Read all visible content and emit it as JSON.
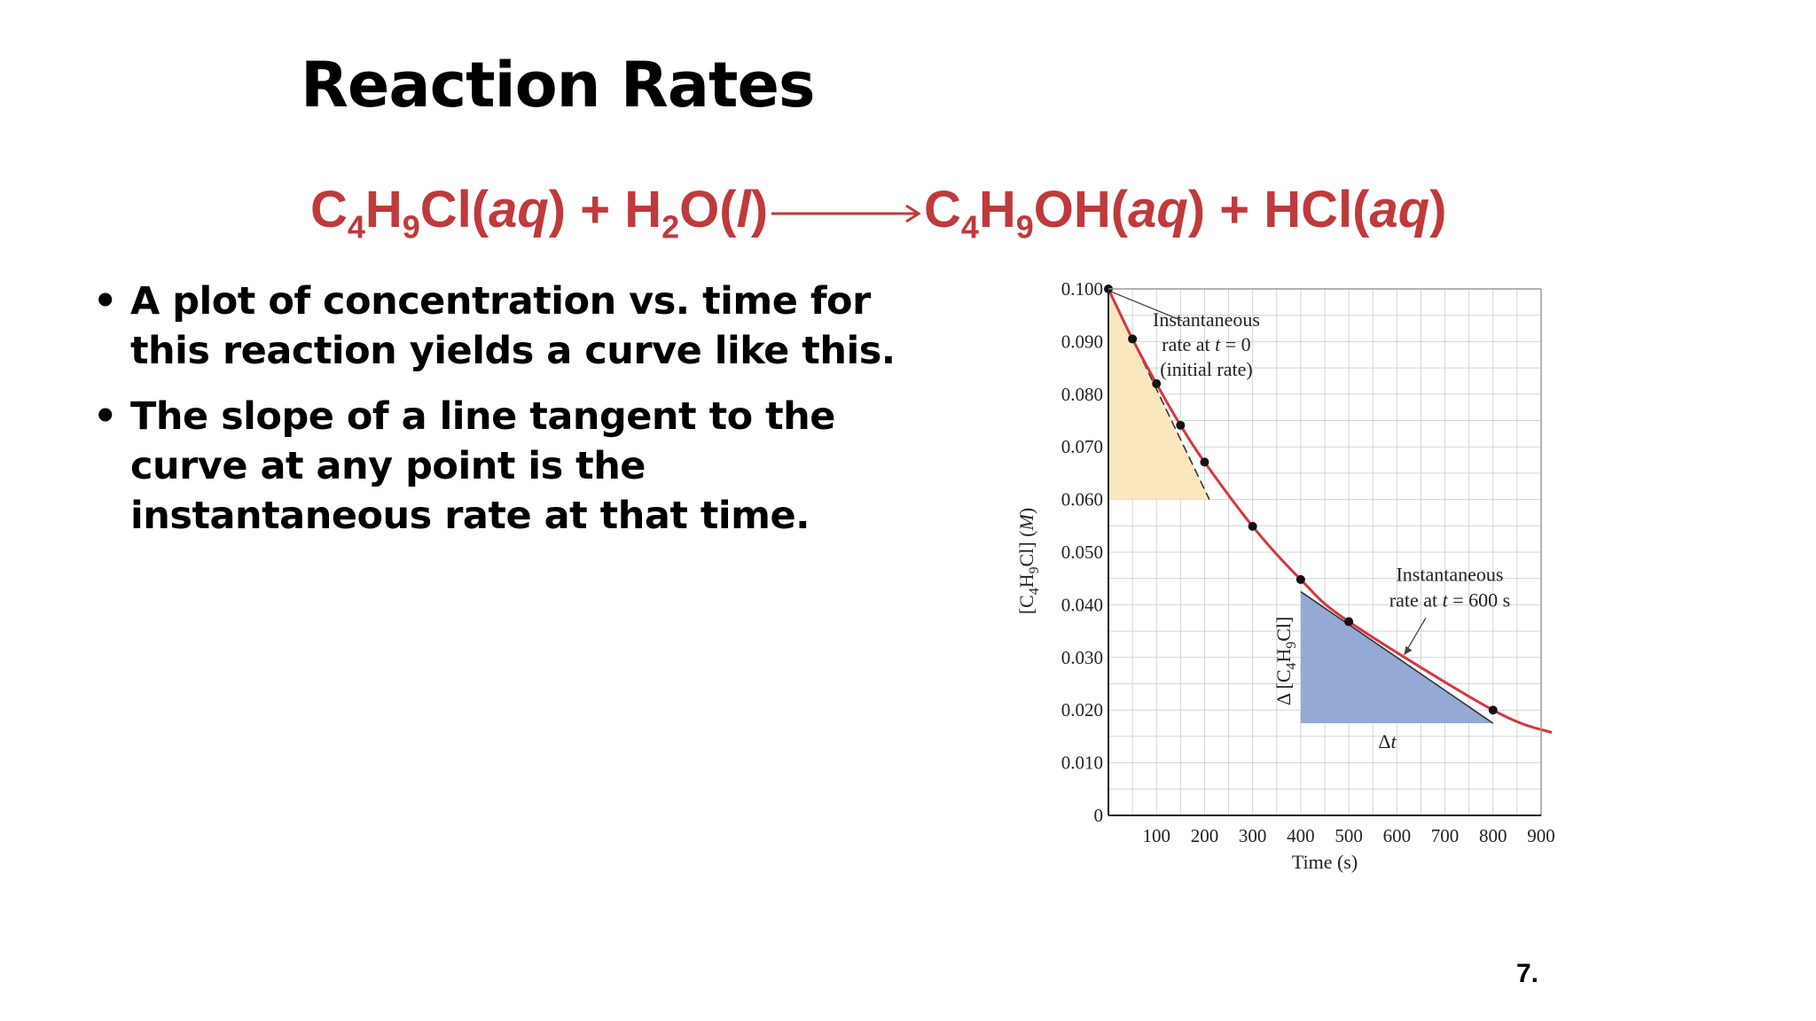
{
  "slide": {
    "title": "Reaction Rates",
    "equation": {
      "r1_a": "C",
      "r1_s1": "4",
      "r1_b": "H",
      "r1_s2": "9",
      "r1_c": "Cl(",
      "r1_phase": "aq",
      "r1_close": ")",
      "plus1": " + ",
      "r2_a": "H",
      "r2_s1": "2",
      "r2_b": "O(",
      "r2_phase": "l",
      "r2_close": ")",
      "p1_a": "C",
      "p1_s1": "4",
      "p1_b": "H",
      "p1_s2": "9",
      "p1_c": "OH(",
      "p1_phase": "aq",
      "p1_close": ")",
      "plus2": " + ",
      "p2_a": "HCl(",
      "p2_phase": "aq",
      "p2_close": ")"
    },
    "bullets": [
      "A plot of concentration vs. time for this reaction yields a curve like this.",
      "The slope of a line tangent to the curve at any point is the instantaneous rate at that time."
    ],
    "page_number": "7."
  },
  "chart_data": {
    "type": "line",
    "title": "",
    "xlabel": "Time (s)",
    "ylabel_parts": [
      "[C",
      "4",
      "H",
      "9",
      "Cl] (",
      "M",
      ")"
    ],
    "xlim": [
      0,
      900
    ],
    "ylim": [
      0,
      0.1
    ],
    "x_tick_values": [
      100,
      200,
      300,
      400,
      500,
      600,
      700,
      800,
      900
    ],
    "x_tick_labels": [
      "100",
      "200",
      "300",
      "400",
      "500",
      "600",
      "700",
      "800",
      "900"
    ],
    "y_tick_values": [
      0,
      0.01,
      0.02,
      0.03,
      0.04,
      0.05,
      0.06,
      0.07,
      0.08,
      0.09,
      0.1
    ],
    "y_tick_labels": [
      "0",
      "0.010",
      "0.020",
      "0.030",
      "0.040",
      "0.050",
      "0.060",
      "0.070",
      "0.080",
      "0.090",
      "0.100"
    ],
    "grid": true,
    "series": [
      {
        "name": "[C4H9Cl]",
        "color": "#d9343f",
        "x": [
          0,
          50,
          100,
          150,
          200,
          300,
          400,
          500,
          800
        ],
        "values": [
          0.1,
          0.0905,
          0.082,
          0.0741,
          0.0671,
          0.0549,
          0.0448,
          0.0368,
          0.02
        ]
      }
    ],
    "curve_extension": {
      "x": 900,
      "value": 0.0164
    },
    "initial_tangent": {
      "x": [
        0,
        210
      ],
      "values": [
        0.1,
        0.06
      ],
      "triangle": {
        "x": [
          0,
          210
        ],
        "values": [
          0.1,
          0.06
        ],
        "fill": "#fbe7bd"
      }
    },
    "tangent_600": {
      "x": [
        400,
        800
      ],
      "values": [
        0.0425,
        0.0175
      ],
      "triangle": {
        "x": [
          400,
          800
        ],
        "values": [
          0.0425,
          0.0175
        ],
        "fill": "#94aad4"
      }
    },
    "annotations": {
      "initial": {
        "lines": [
          "Instantaneous",
          "rate at t = 0",
          "(initial rate)"
        ],
        "line2_parts": [
          "rate at ",
          "t",
          " = 0"
        ]
      },
      "t600": {
        "lines": [
          "Instantaneous",
          "rate at t = 600 s"
        ],
        "line2_parts": [
          "rate at ",
          "t",
          " = 600 s"
        ]
      },
      "delta_conc_parts": [
        "Δ [C",
        "4",
        "H",
        "9",
        "Cl]"
      ],
      "delta_t_parts": [
        "Δ",
        "t"
      ]
    }
  }
}
